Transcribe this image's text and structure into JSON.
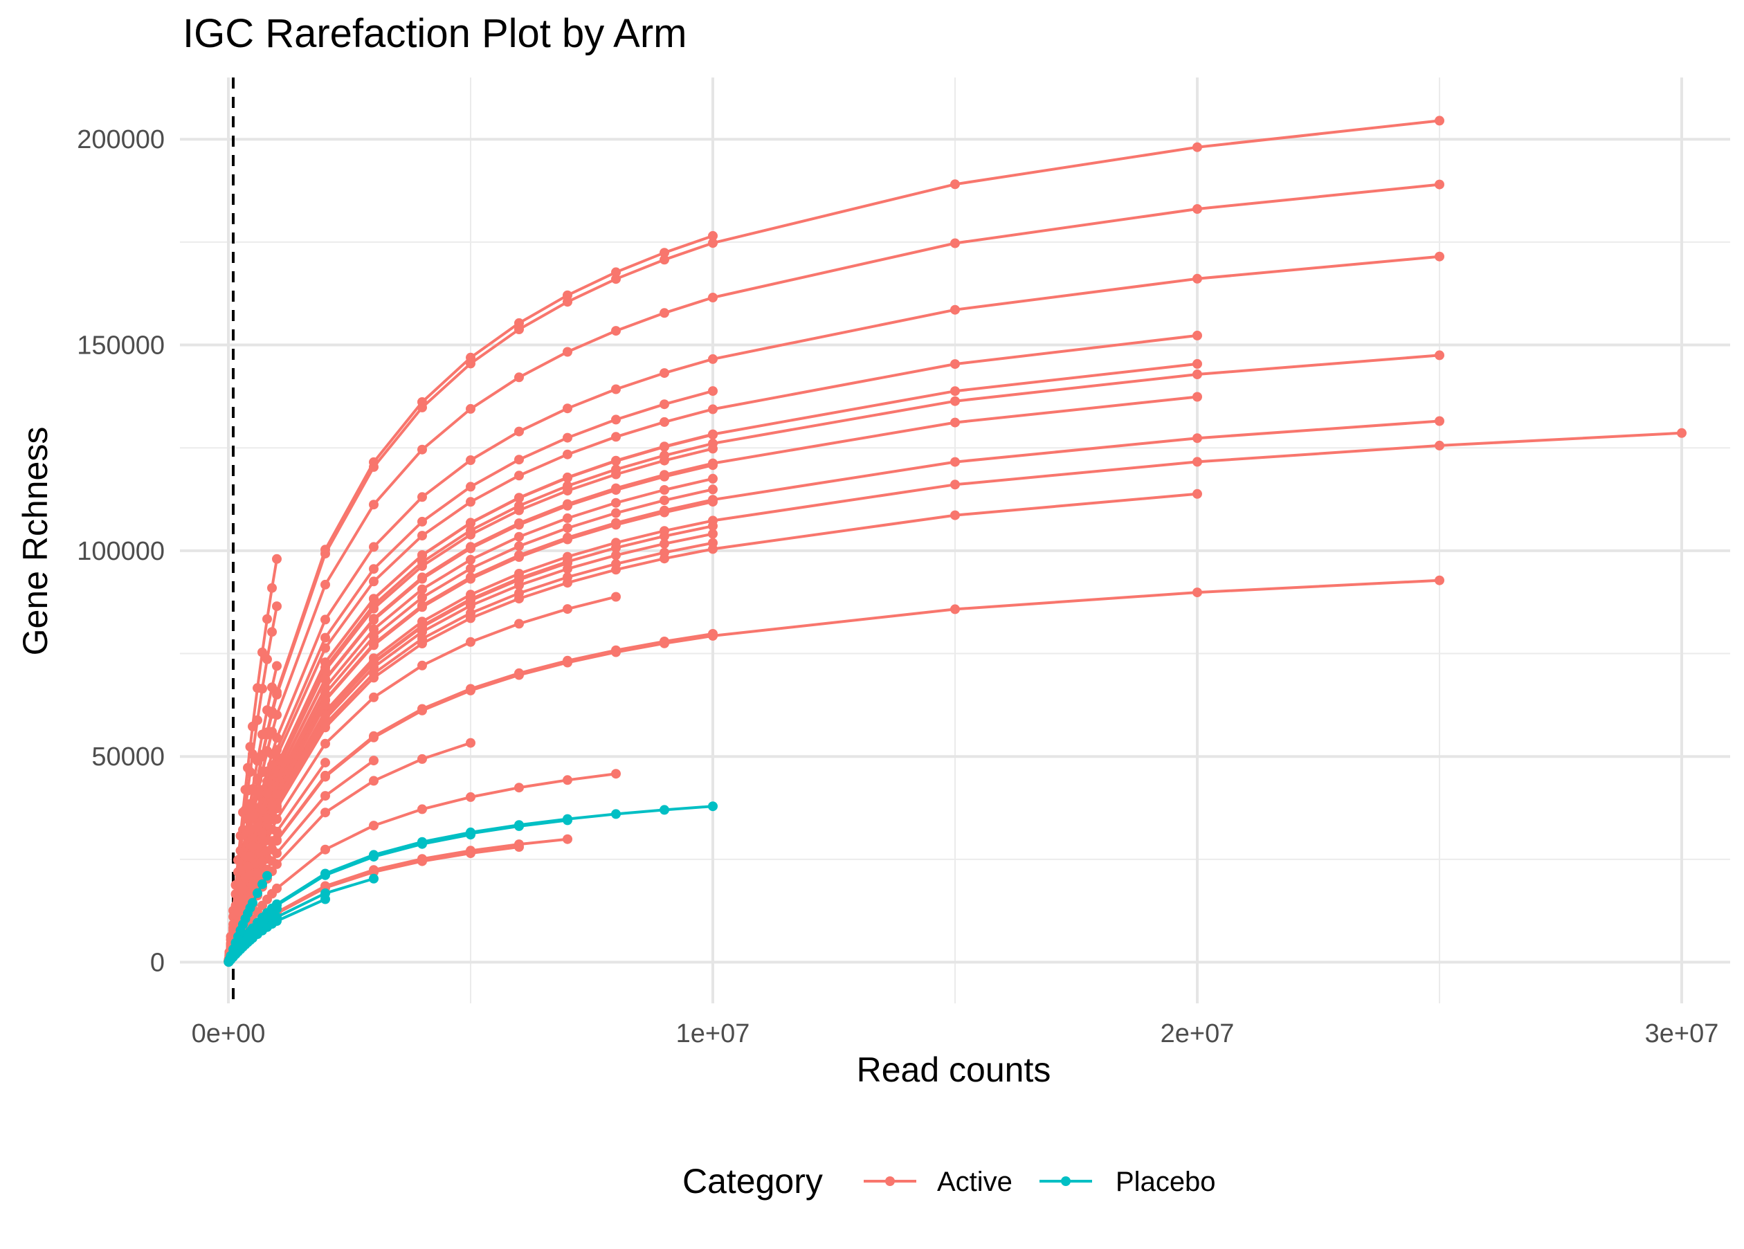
{
  "chart_data": {
    "type": "line",
    "title": "IGC Rarefaction Plot by Arm",
    "xlabel": "Read counts",
    "ylabel": "Gene Rchness",
    "xlim": [
      -1000000,
      31000000
    ],
    "ylim": [
      -10000,
      215000
    ],
    "x_ticks": [
      0,
      10000000,
      20000000,
      30000000
    ],
    "x_tick_labels": [
      "0e+00",
      "1e+07",
      "2e+07",
      "3e+07"
    ],
    "y_ticks": [
      0,
      50000,
      100000,
      150000,
      200000
    ],
    "y_tick_labels": [
      "0",
      "50000",
      "100000",
      "150000",
      "200000"
    ],
    "vline_x": 100000,
    "vline_style": "dashed",
    "grid": true,
    "legend": {
      "title": "Category",
      "position": "bottom",
      "entries": [
        {
          "name": "Active",
          "color": "#F8766D"
        },
        {
          "name": "Placebo",
          "color": "#00BFC4"
        }
      ]
    },
    "series": [
      {
        "category": "Active",
        "max_x": 10000000,
        "max_y": 176500
      },
      {
        "category": "Active",
        "max_x": 25000000,
        "max_y": 204500
      },
      {
        "category": "Active",
        "max_x": 25000000,
        "max_y": 189000
      },
      {
        "category": "Active",
        "max_x": 25000000,
        "max_y": 171500
      },
      {
        "category": "Active",
        "max_x": 25000000,
        "max_y": 147500
      },
      {
        "category": "Active",
        "max_x": 25000000,
        "max_y": 131500
      },
      {
        "category": "Active",
        "max_x": 25000000,
        "max_y": 92800
      },
      {
        "category": "Active",
        "max_x": 20000000,
        "max_y": 152300
      },
      {
        "category": "Active",
        "max_x": 20000000,
        "max_y": 145400
      },
      {
        "category": "Active",
        "max_x": 20000000,
        "max_y": 137400
      },
      {
        "category": "Active",
        "max_x": 20000000,
        "max_y": 113800
      },
      {
        "category": "Active",
        "max_x": 30000000,
        "max_y": 128600
      },
      {
        "category": "Active",
        "max_x": 10000000,
        "max_y": 138800
      },
      {
        "category": "Active",
        "max_x": 10000000,
        "max_y": 128200
      },
      {
        "category": "Active",
        "max_x": 10000000,
        "max_y": 124800
      },
      {
        "category": "Active",
        "max_x": 10000000,
        "max_y": 120800
      },
      {
        "category": "Active",
        "max_x": 10000000,
        "max_y": 117500
      },
      {
        "category": "Active",
        "max_x": 10000000,
        "max_y": 114900
      },
      {
        "category": "Active",
        "max_x": 10000000,
        "max_y": 111900
      },
      {
        "category": "Active",
        "max_x": 10000000,
        "max_y": 106000
      },
      {
        "category": "Active",
        "max_x": 10000000,
        "max_y": 104100
      },
      {
        "category": "Active",
        "max_x": 10000000,
        "max_y": 101900
      },
      {
        "category": "Active",
        "max_x": 10000000,
        "max_y": 79800
      },
      {
        "category": "Active",
        "max_x": 8000000,
        "max_y": 88800
      },
      {
        "category": "Active",
        "max_x": 8000000,
        "max_y": 45800
      },
      {
        "category": "Active",
        "max_x": 7000000,
        "max_y": 97000
      },
      {
        "category": "Active",
        "max_x": 7000000,
        "max_y": 29900
      },
      {
        "category": "Active",
        "max_x": 6000000,
        "max_y": 28000
      },
      {
        "category": "Active",
        "max_x": 5000000,
        "max_y": 53300
      },
      {
        "category": "Active",
        "max_x": 3000000,
        "max_y": 49000
      },
      {
        "category": "Active",
        "max_x": 2000000,
        "max_y": 62500
      },
      {
        "category": "Active",
        "max_x": 2000000,
        "max_y": 48500
      },
      {
        "category": "Active",
        "max_x": 1000000,
        "max_y": 98000
      },
      {
        "category": "Active",
        "max_x": 1000000,
        "max_y": 86500
      },
      {
        "category": "Active",
        "max_x": 1000000,
        "max_y": 72000
      },
      {
        "category": "Active",
        "max_x": 900000,
        "max_y": 56000
      },
      {
        "category": "Active",
        "max_x": 800000,
        "max_y": 41000
      },
      {
        "category": "Placebo",
        "max_x": 10000000,
        "max_y": 37900
      },
      {
        "category": "Placebo",
        "max_x": 7000000,
        "max_y": 34500
      },
      {
        "category": "Placebo",
        "max_x": 5000000,
        "max_y": 31000
      },
      {
        "category": "Placebo",
        "max_x": 3000000,
        "max_y": 20300
      },
      {
        "category": "Placebo",
        "max_x": 2000000,
        "max_y": 15300
      },
      {
        "category": "Placebo",
        "max_x": 1000000,
        "max_y": 13000
      },
      {
        "category": "Placebo",
        "max_x": 800000,
        "max_y": 21000
      }
    ]
  }
}
